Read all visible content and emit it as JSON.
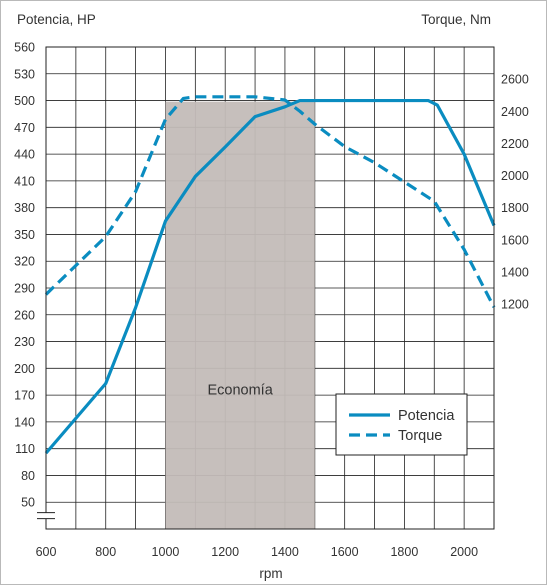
{
  "chart_data": {
    "type": "line",
    "left_axis_title": "Potencia, HP",
    "right_axis_title": "Torque, Nm",
    "xlabel": "rpm",
    "x_ticks": [
      600,
      800,
      1000,
      1200,
      1400,
      1600,
      1800,
      2000
    ],
    "xlim": [
      600,
      2100
    ],
    "y_left_ticks": [
      50,
      80,
      110,
      140,
      170,
      200,
      230,
      260,
      290,
      320,
      350,
      380,
      410,
      440,
      470,
      500,
      530,
      560
    ],
    "y_left_range": [
      20,
      560
    ],
    "y_left_axis_break": true,
    "y_right_ticks": [
      1200,
      1400,
      1600,
      1800,
      2000,
      2200,
      2400,
      2600
    ],
    "y_right_range": [
      -200,
      2800
    ],
    "grid": true,
    "shaded_band": {
      "label": "Economía",
      "x_from": 1000,
      "x_to": 1500
    },
    "legend_position": "bottom-right",
    "series": [
      {
        "name": "Potencia",
        "axis": "left",
        "style": "solid",
        "color": "#0a8cc0",
        "x": [
          600,
          800,
          900,
          1000,
          1050,
          1100,
          1200,
          1300,
          1400,
          1450,
          1600,
          1800,
          1880,
          1910,
          2000,
          2100
        ],
        "y": [
          105,
          183,
          268,
          365,
          390,
          415,
          448,
          482,
          493,
          500,
          500,
          500,
          500,
          495,
          440,
          360
        ]
      },
      {
        "name": "Torque",
        "axis": "right",
        "style": "dashed",
        "color": "#0a8cc0",
        "x": [
          600,
          700,
          800,
          900,
          1000,
          1060,
          1100,
          1200,
          1300,
          1400,
          1450,
          1500,
          1600,
          1700,
          1800,
          1900,
          2000,
          2100
        ],
        "y": [
          1260,
          1440,
          1620,
          1900,
          2350,
          2480,
          2490,
          2490,
          2490,
          2470,
          2400,
          2320,
          2180,
          2080,
          1960,
          1840,
          1540,
          1180
        ]
      }
    ]
  }
}
